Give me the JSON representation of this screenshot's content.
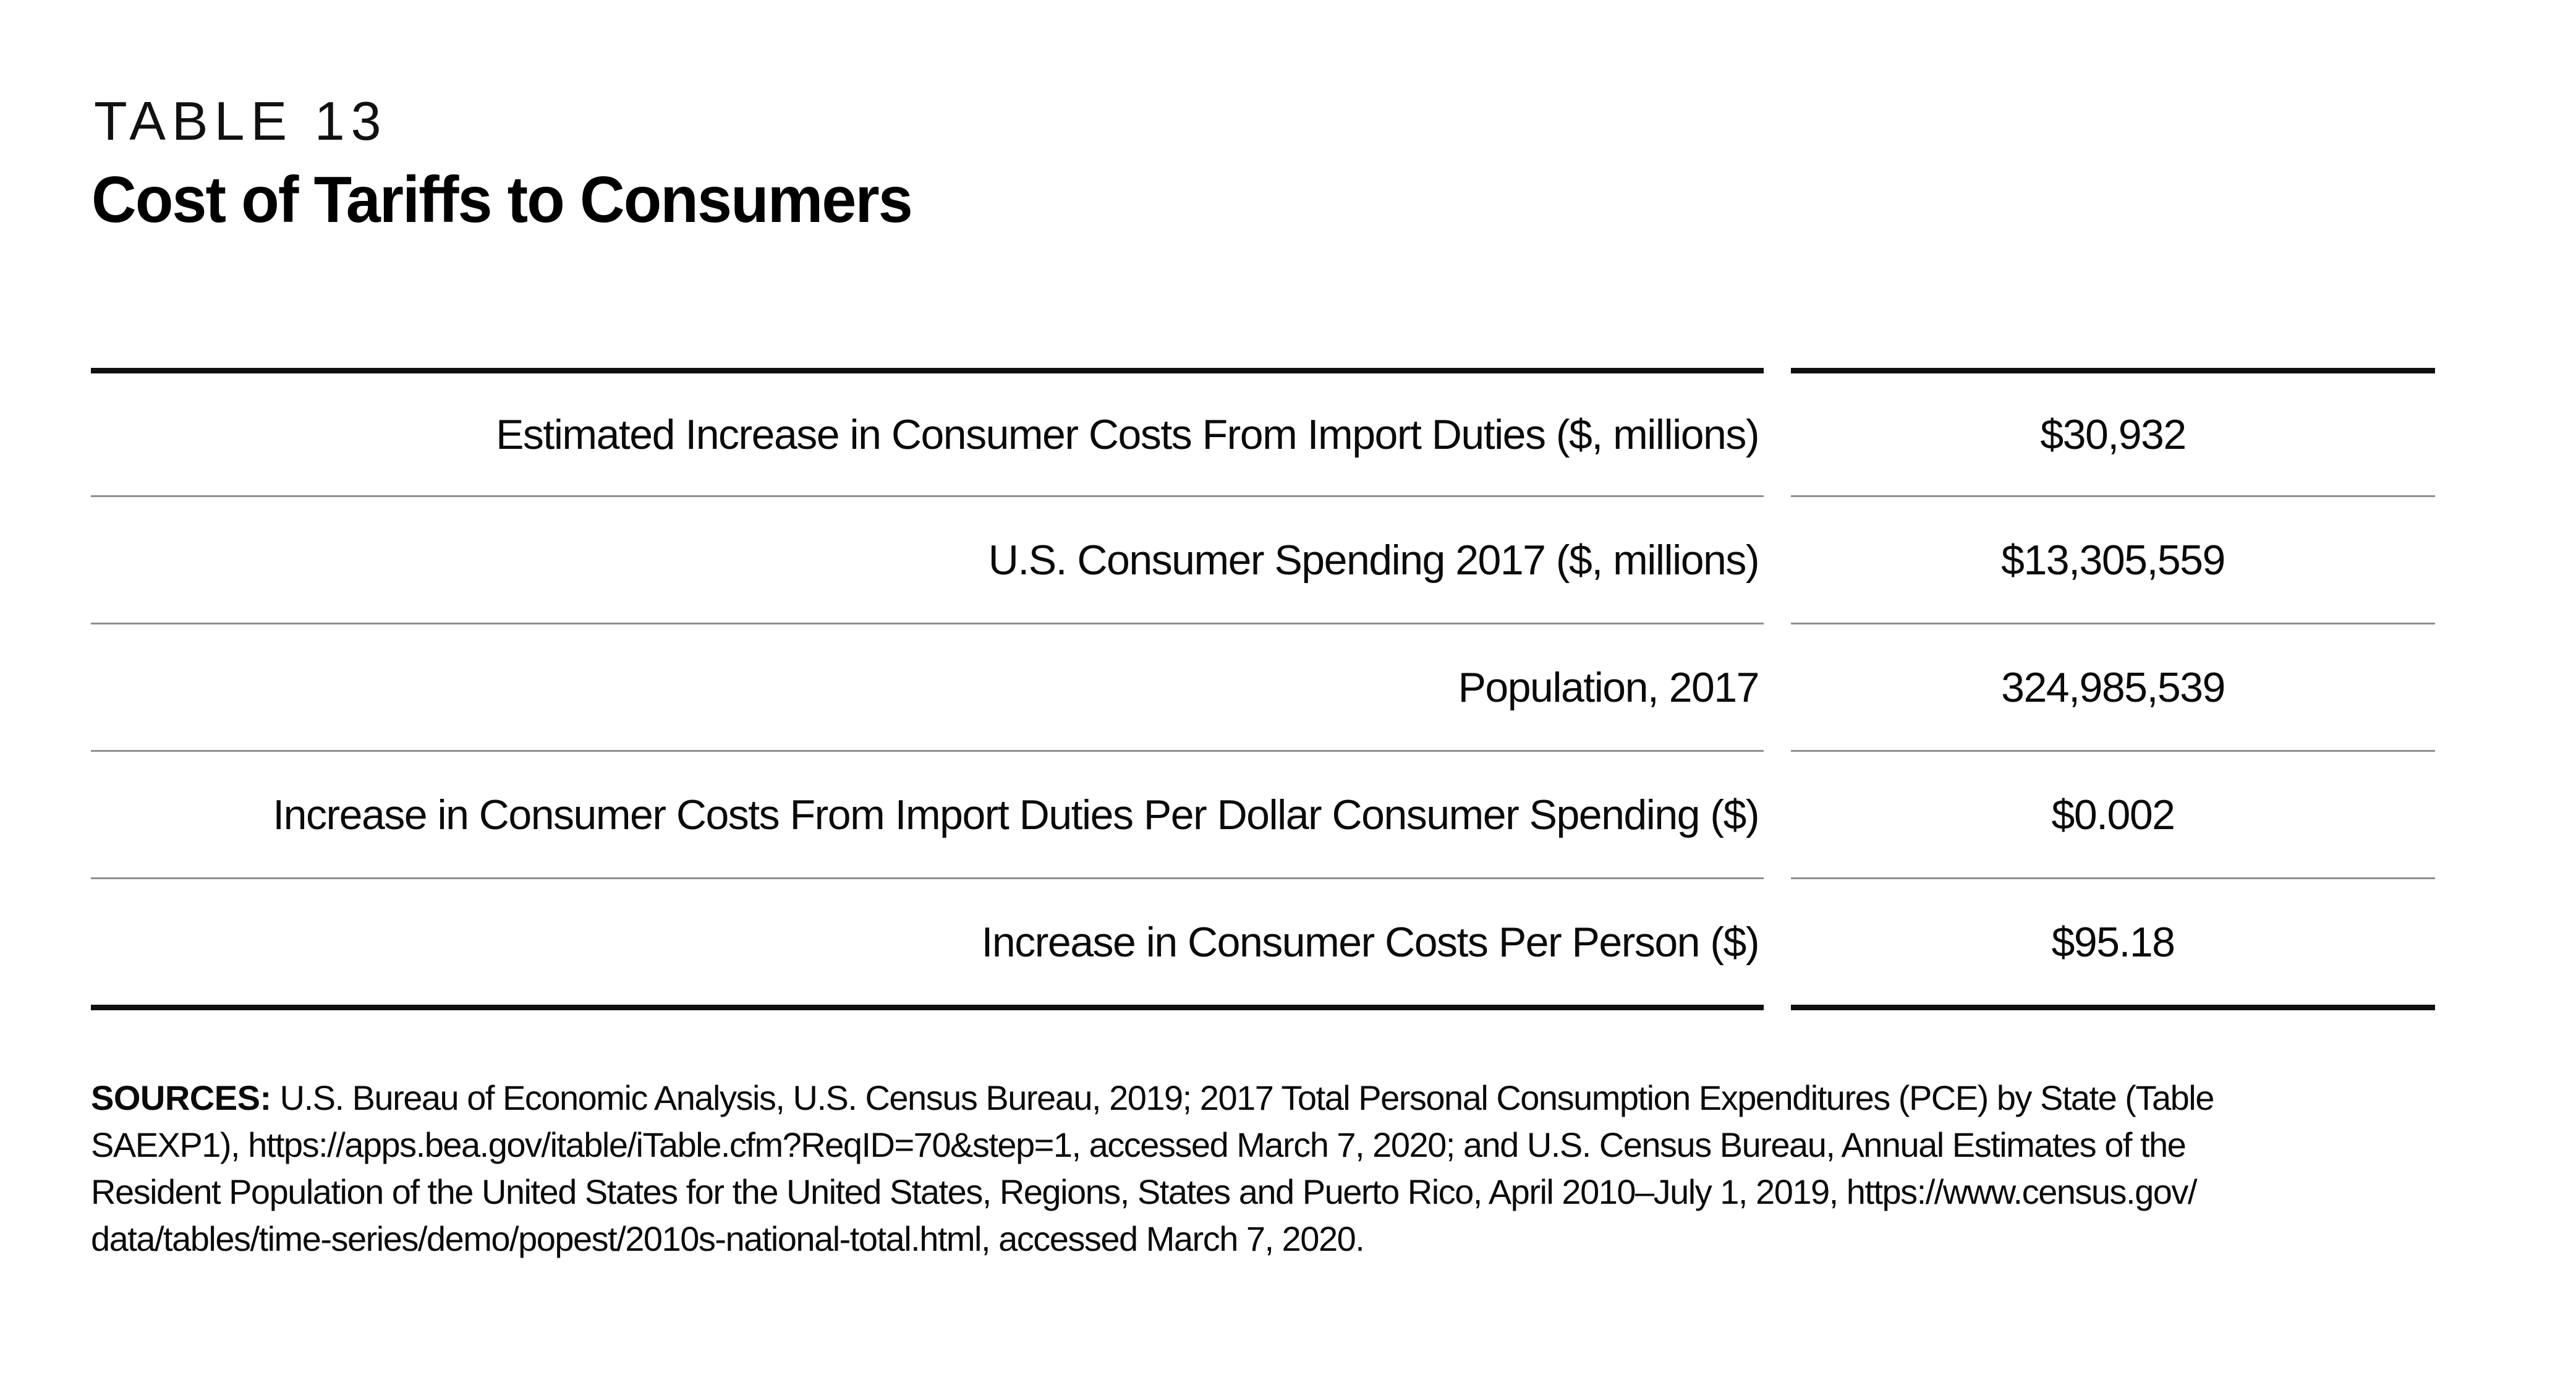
{
  "page": {
    "kicker": "TABLE 13",
    "title": "Cost of Tariffs to Consumers"
  },
  "table": {
    "rows": [
      {
        "label": "Estimated Increase in Consumer Costs From Import Duties ($, millions)",
        "value": "$30,932"
      },
      {
        "label": "U.S. Consumer Spending 2017 ($, millions)",
        "value": "$13,305,559"
      },
      {
        "label": "Population, 2017",
        "value": "324,985,539"
      },
      {
        "label": "Increase in Consumer Costs From Import Duties Per Dollar Consumer Spending ($)",
        "value": "$0.002"
      },
      {
        "label": "Increase in Consumer Costs Per Person ($)",
        "value": "$95.18"
      }
    ]
  },
  "sources": {
    "label": "SOURCES:",
    "line1": " U.S. Bureau of Economic Analysis, U.S. Census Bureau, 2019; 2017 Total Personal Consumption Expenditures (PCE) by State (Table",
    "line2": "SAEXP1), https://apps.bea.gov/itable/iTable.cfm?ReqID=70&step=1, accessed March 7, 2020; and U.S. Census Bureau, Annual Estimates of the",
    "line3": "Resident Population of the United States for the United States, Regions, States and Puerto Rico, April 2010–July 1, 2019, https://www.census.gov/",
    "line4": "data/tables/time-series/demo/popest/2010s-national-total.html, accessed March 7, 2020."
  },
  "colors": {
    "background": "#ffffff",
    "text": "#0a0a0a",
    "rule_thick": "#101010",
    "rule_thin": "#8f8f8f"
  }
}
